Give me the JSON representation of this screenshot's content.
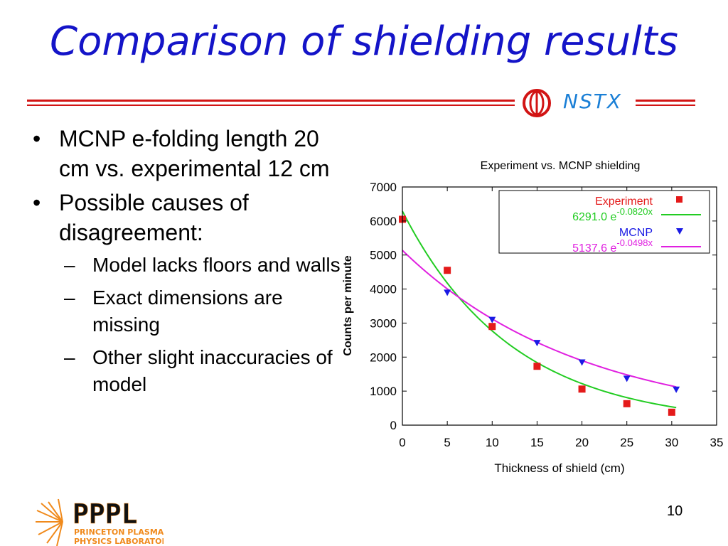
{
  "slide": {
    "title": "Comparison of shielding results",
    "page_number": "10",
    "nstx_logo_text": "NSTX",
    "pppl_logo": {
      "name": "PPPL",
      "line1": "PRINCETON PLASMA",
      "line2": "PHYSICS LABORATORY"
    },
    "colors": {
      "title": "#1414c8",
      "rule": "#d21414",
      "nstx": "#1a7fd6"
    }
  },
  "bullets": [
    {
      "text": "MCNP e-folding length 20 cm vs. experimental 12 cm",
      "sub": []
    },
    {
      "text": "Possible causes of disagreement:",
      "sub": [
        "Model lacks floors and walls",
        "Exact dimensions are missing",
        "Other slight inaccuracies of model"
      ]
    }
  ],
  "chart_data": {
    "type": "scatter",
    "title": "Experiment vs. MCNP shielding",
    "xlabel": "Thickness of shield (cm)",
    "ylabel": "Counts per minute",
    "xlim": [
      0,
      35
    ],
    "ylim": [
      0,
      7000
    ],
    "xticks": [
      0,
      5,
      10,
      15,
      20,
      25,
      30,
      35
    ],
    "yticks": [
      0,
      1000,
      2000,
      3000,
      4000,
      5000,
      6000,
      7000
    ],
    "legend_position": "top-right",
    "series": [
      {
        "name": "Experiment",
        "marker": "square",
        "color": "#e41a1a",
        "x": [
          0,
          5,
          10,
          15,
          20,
          25,
          30
        ],
        "y": [
          6050,
          4550,
          2900,
          1730,
          1060,
          630,
          380
        ]
      },
      {
        "name": "MCNP",
        "marker": "triangle-down",
        "color": "#1a1ae4",
        "x": [
          5,
          10,
          15,
          20,
          25,
          30.5
        ],
        "y": [
          3900,
          3100,
          2420,
          1850,
          1370,
          1050
        ]
      }
    ],
    "fits": [
      {
        "label_coef": "6291.0 e",
        "label_exp": "-0.0820x",
        "coef": 6291.0,
        "rate": -0.082,
        "color": "#22cc22",
        "x_range": [
          0,
          30.5
        ]
      },
      {
        "label_coef": "5137.6 e",
        "label_exp": "-0.0498x",
        "coef": 5137.6,
        "rate": -0.0498,
        "color": "#e020e0",
        "x_range": [
          0,
          30.5
        ]
      }
    ]
  }
}
